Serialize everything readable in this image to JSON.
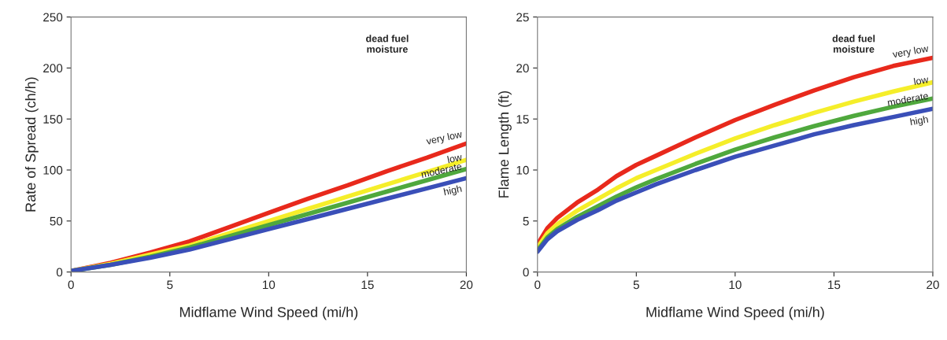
{
  "chart_data": [
    {
      "type": "line",
      "xlabel": "Midflame Wind Speed (mi/h)",
      "ylabel": "Rate of Spread (ch/h)",
      "legend_title": "dead fuel\nmoisture",
      "x": [
        0,
        2,
        4,
        6,
        8,
        10,
        12,
        14,
        16,
        18,
        20
      ],
      "xlim": [
        0,
        20
      ],
      "xticks": [
        0,
        5,
        10,
        15,
        20
      ],
      "ylim": [
        0,
        250
      ],
      "yticks": [
        0,
        50,
        100,
        150,
        200,
        250
      ],
      "grid": false,
      "legend": false,
      "marker": "none",
      "line_style": "solid",
      "series": [
        {
          "name": "very low",
          "color": "#e8291c",
          "values": [
            1,
            9,
            19,
            30,
            44,
            58,
            72,
            85,
            99,
            112,
            126
          ]
        },
        {
          "name": "low",
          "color": "#f5ee2a",
          "values": [
            1,
            8,
            17,
            26,
            38,
            50,
            62,
            74,
            86,
            98,
            110
          ]
        },
        {
          "name": "moderate",
          "color": "#4fa83d",
          "values": [
            1,
            7,
            15,
            24,
            35,
            46,
            57,
            68,
            79,
            90,
            101
          ]
        },
        {
          "name": "high",
          "color": "#3a4fb8",
          "values": [
            1,
            7,
            14,
            22,
            32,
            42,
            52,
            62,
            72,
            82,
            92
          ]
        }
      ]
    },
    {
      "type": "line",
      "xlabel": "Midflame Wind Speed (mi/h)",
      "ylabel": "Flame Length (ft)",
      "legend_title": "dead fuel\nmoisture",
      "x": [
        0,
        0.5,
        1,
        2,
        3,
        4,
        5,
        6,
        8,
        10,
        12,
        14,
        16,
        18,
        20
      ],
      "xlim": [
        0,
        20
      ],
      "xticks": [
        0,
        5,
        10,
        15,
        20
      ],
      "ylim": [
        0,
        25
      ],
      "yticks": [
        0,
        5,
        10,
        15,
        20,
        25
      ],
      "grid": false,
      "legend": false,
      "marker": "none",
      "line_style": "solid",
      "series": [
        {
          "name": "very low",
          "color": "#e8291c",
          "values": [
            2.7,
            4.3,
            5.3,
            6.8,
            8.0,
            9.4,
            10.5,
            11.4,
            13.2,
            14.9,
            16.4,
            17.8,
            19.1,
            20.2,
            21.0
          ]
        },
        {
          "name": "low",
          "color": "#f5ee2a",
          "values": [
            2.4,
            3.8,
            4.7,
            6.0,
            7.1,
            8.2,
            9.2,
            10.0,
            11.6,
            13.1,
            14.4,
            15.6,
            16.7,
            17.7,
            18.6
          ]
        },
        {
          "name": "moderate",
          "color": "#4fa83d",
          "values": [
            2.1,
            3.4,
            4.2,
            5.4,
            6.4,
            7.4,
            8.3,
            9.1,
            10.6,
            12.0,
            13.2,
            14.3,
            15.3,
            16.2,
            17.0
          ]
        },
        {
          "name": "high",
          "color": "#3a4fb8",
          "values": [
            2.0,
            3.2,
            4.0,
            5.1,
            6.0,
            7.0,
            7.8,
            8.6,
            10.0,
            11.3,
            12.4,
            13.5,
            14.4,
            15.2,
            16.0
          ]
        }
      ]
    }
  ]
}
